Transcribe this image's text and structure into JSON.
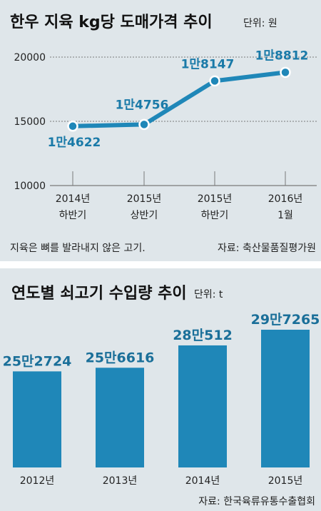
{
  "chart_data": [
    {
      "type": "line",
      "title": "한우 지육 kg당 도매가격 추이",
      "unit": "단위: 원",
      "categories": [
        [
          "2014년",
          "하반기"
        ],
        [
          "2015년",
          "상반기"
        ],
        [
          "2015년",
          "하반기"
        ],
        [
          "2016년",
          "1월"
        ]
      ],
      "values": [
        14622,
        14756,
        18147,
        18812
      ],
      "value_labels": [
        "1만4622",
        "1만4756",
        "1만8147",
        "1만8812"
      ],
      "yticks": [
        10000,
        15000,
        20000
      ],
      "ylim": [
        10000,
        20000
      ],
      "note": "지육은 뼈를 발라내지 않은 고기.",
      "source": "자료: 축산물품질평가원",
      "color": "#1f87b8",
      "grid": true
    },
    {
      "type": "bar",
      "title": "연도별 쇠고기 수입량 추이",
      "unit": "단위: t",
      "categories": [
        "2012년",
        "2013년",
        "2014년",
        "2015년"
      ],
      "values": [
        252724,
        256616,
        280512,
        297265
      ],
      "value_labels": [
        "25만2724",
        "25만6616",
        "28만512",
        "29만7265"
      ],
      "source": "자료: 한국육류유통수출협회",
      "color": "#1f87b8"
    }
  ]
}
